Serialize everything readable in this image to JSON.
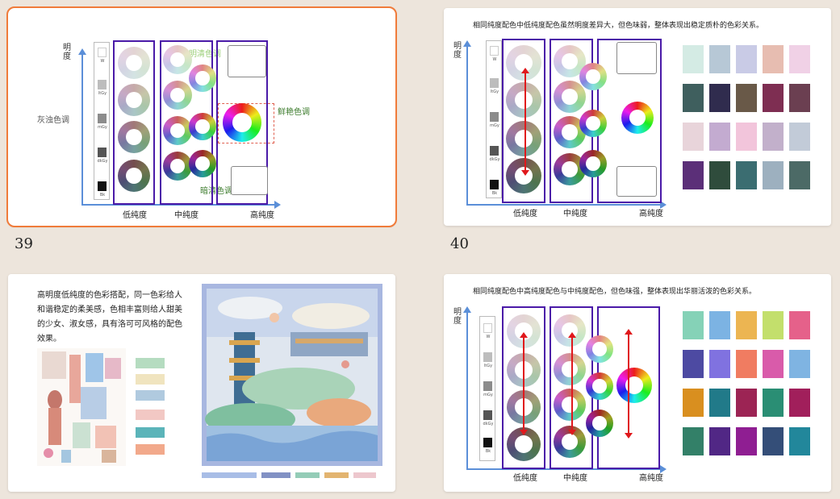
{
  "slides": [
    {
      "number": "39",
      "axis": {
        "y": "明度",
        "x_cols": [
          "低纯度",
          "中纯度",
          "高纯度"
        ]
      },
      "tones": {
        "light": "明清色调",
        "vivid": "鲜艳色调",
        "dull": "灰浊色调",
        "dark": "暗清色调"
      },
      "grays": [
        "W",
        "ltGy",
        "mGy",
        "dkGy",
        "Bk"
      ]
    },
    {
      "number": "40",
      "title": "相同纯度配色中低纯度配色虽然明度差异大，但色味弱，整体表现出稳定质朴的色彩关系。",
      "axis": {
        "y": "明度",
        "x_cols": [
          "低纯度",
          "中纯度",
          "高纯度"
        ]
      },
      "grays": [
        "W",
        "ltGy",
        "mGy",
        "dkGy",
        "Bk"
      ],
      "palette": [
        "#d4ebe4",
        "#b7c8d6",
        "#c9cbe6",
        "#e7bdb1",
        "#f0d1e6",
        "#3f5f5e",
        "#302c4e",
        "#695948",
        "#7e2e52",
        "#6b3f51",
        "#e8d4da",
        "#c3abd0",
        "#f2c5db",
        "#c2b0cb",
        "#c2cbd8",
        "#5b2f78",
        "#2f4c3c",
        "#3b6d71",
        "#9db0bf",
        "#4c6a66"
      ]
    },
    {
      "text": "高明度低纯度的色彩搭配，同一色彩给人和谐稳定的柔美感，色相丰富则给人甜美的少女、淑女感，具有洛可可风格的配色效果。",
      "collage_swatches": [
        "#b5dcc0",
        "#f0e4bf",
        "#b0cadf",
        "#f2c8c4",
        "#5bb4b9",
        "#f2a98b"
      ],
      "bottom_bars": [
        "#a8bde6",
        "#8291c4",
        "#94ccb7",
        "#e2b470",
        "#edc7cd"
      ]
    },
    {
      "title": "相同纯度配色中高纯度配色与中纯度配色，但色味强，整体表现出华丽活泼的色彩关系。",
      "axis": {
        "y": "明度",
        "x_cols": [
          "低纯度",
          "中纯度",
          "高纯度"
        ]
      },
      "grays": [
        "W",
        "ltGy",
        "mGy",
        "dkGy",
        "Bk"
      ],
      "palette": [
        "#85d2b7",
        "#7cb3e3",
        "#ecb552",
        "#c3df6c",
        "#e5618a",
        "#4d4aa2",
        "#8072e0",
        "#f07c61",
        "#d95baa",
        "#7fb4e2",
        "#d98f1f",
        "#217a89",
        "#9c2454",
        "#2a8e74",
        "#a11f5b",
        "#338068",
        "#512785",
        "#8f1e92",
        "#344e78",
        "#22879b"
      ]
    }
  ]
}
